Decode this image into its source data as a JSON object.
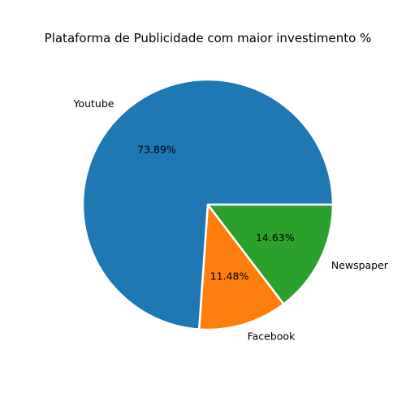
{
  "chart_data": {
    "type": "pie",
    "title": "Plataforma de Publicidade com maior investimento %",
    "slices": [
      {
        "label": "Youtube",
        "value": 73.89,
        "pct_label": "73.89%",
        "color": "#1f77b4"
      },
      {
        "label": "Facebook",
        "value": 11.48,
        "pct_label": "11.48%",
        "color": "#ff7f0e"
      },
      {
        "label": "Newspaper",
        "value": 14.63,
        "pct_label": "14.63%",
        "color": "#2ca02c"
      }
    ]
  }
}
